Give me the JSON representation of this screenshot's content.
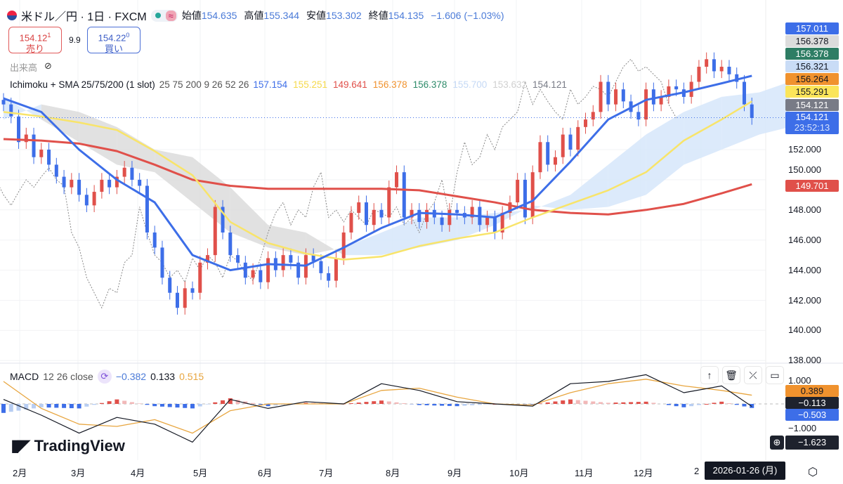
{
  "header": {
    "symbol": "米ドル／円 · 1日 · FXCM",
    "open_label": "始値",
    "open": "154.635",
    "high_label": "高値",
    "high": "155.344",
    "low_label": "安値",
    "low": "153.302",
    "close_label": "終値",
    "close": "154.135",
    "change": "−1.606 (−1.03%)",
    "wave_icon": "≈"
  },
  "trade": {
    "sell_price": "154.12",
    "sell_sup": "1",
    "sell_label": "売り",
    "spread": "9.9",
    "buy_price": "154.22",
    "buy_sup": "0",
    "buy_label": "買い"
  },
  "volume": {
    "label": "出来高",
    "icon": "eye-off-icon"
  },
  "indicator": {
    "name": "Ichimoku + SMA 25/75/200 (1 slot)",
    "params": "25 75 200 9 26 52 26",
    "values": [
      {
        "v": "157.154",
        "color": "#3d6ee8"
      },
      {
        "v": "155.251",
        "color": "#f5d94a"
      },
      {
        "v": "149.641",
        "color": "#e0504a"
      },
      {
        "v": "156.378",
        "color": "#f0922e"
      },
      {
        "v": "156.378",
        "color": "#2e8b6a"
      },
      {
        "v": "155.700",
        "color": "#c5d9f5"
      },
      {
        "v": "153.632",
        "color": "#d0d0d0"
      },
      {
        "v": "154.121",
        "color": "#787b86"
      }
    ]
  },
  "price_labels": [
    {
      "v": "157.011",
      "bg": "#3d6ee8",
      "fg": "#fff"
    },
    {
      "v": "156.378",
      "bg": "#dcdcdc",
      "fg": "#131722"
    },
    {
      "v": "156.378",
      "bg": "#2e7d64",
      "fg": "#fff"
    },
    {
      "v": "156.321",
      "bg": "#c9dcf6",
      "fg": "#131722"
    },
    {
      "v": "156.264",
      "bg": "#f0922e",
      "fg": "#131722"
    },
    {
      "v": "155.291",
      "bg": "#fbe55a",
      "fg": "#131722"
    },
    {
      "v": "154.121",
      "bg": "#787b86",
      "fg": "#fff"
    }
  ],
  "last_price": {
    "v": "154.121",
    "countdown": "23:52:13",
    "bg": "#3d6ee8"
  },
  "sma200_label": {
    "v": "149.701",
    "bg": "#e0504a"
  },
  "price_ticks": [
    "152.000",
    "150.000",
    "148.000",
    "146.000",
    "144.000",
    "142.000",
    "140.000",
    "138.000"
  ],
  "macd": {
    "label": "MACD",
    "params": "12 26 close",
    "hist": "−0.382",
    "macd": "0.133",
    "signal": "0.515",
    "ticks": [
      "1.000",
      "−1.000"
    ],
    "labels": [
      {
        "v": "0.389",
        "bg": "#f0922e",
        "fg": "#131722"
      },
      {
        "v": "−0.113",
        "bg": "#1e222d",
        "fg": "#fff"
      },
      {
        "v": "−0.503",
        "bg": "#3d6ee8",
        "fg": "#fff"
      }
    ],
    "crosshair": "−1.623"
  },
  "pane_buttons": [
    "↑",
    "🗑",
    "⤫",
    "▭"
  ],
  "months": [
    "2月",
    "3月",
    "4月",
    "5月",
    "6月",
    "7月",
    "8月",
    "9月",
    "10月",
    "11月",
    "12月",
    "2"
  ],
  "tooltip": "2026-01-26 (月)",
  "logo": "TradingView",
  "chart_data": {
    "type": "candlestick",
    "up_color": "#e0504a",
    "down_color": "#3d6ee8",
    "ylim": [
      138,
      157.5
    ],
    "close": [
      155.0,
      154.2,
      152.5,
      153.0,
      151.5,
      152.0,
      151.0,
      150.2,
      149.5,
      150.0,
      149.0,
      148.3,
      149.2,
      150.0,
      149.5,
      150.2,
      150.8,
      150.0,
      149.6,
      146.5,
      145.5,
      143.5,
      142.5,
      141.5,
      142.8,
      142.5,
      144.5,
      145.0,
      148.2,
      146.5,
      145.0,
      144.5,
      143.5,
      144.0,
      143.2,
      144.8,
      144.0,
      145.0,
      144.5,
      143.5,
      145.0,
      144.6,
      143.8,
      143.3,
      144.8,
      146.5,
      147.8,
      148.5,
      147.0,
      148.0,
      147.5,
      149.5,
      150.5,
      147.5,
      148.0,
      147.2,
      148.0,
      147.5,
      147.0,
      148.0,
      147.8,
      147.5,
      148.2,
      147.0,
      147.5,
      146.5,
      147.8,
      148.5,
      150.0,
      147.5,
      150.5,
      152.5,
      151.0,
      151.5,
      153.0,
      152.0,
      153.5,
      154.0,
      154.5,
      156.5,
      155.0,
      156.0,
      155.2,
      154.5,
      154.0,
      156.0,
      155.0,
      155.5,
      156.2,
      156.0,
      155.5,
      156.5,
      157.5,
      158.0,
      157.2,
      157.5,
      157.0,
      156.5,
      155.0,
      154.1
    ],
    "sample_step": 5,
    "sma25": [
      155.4,
      154.5,
      152.0,
      150.0,
      148.5,
      145.0,
      144.0,
      144.4,
      144.3,
      145.5,
      146.8,
      147.8,
      147.7,
      147.5,
      148.6,
      151.2,
      154.0,
      155.3,
      155.8,
      156.4,
      156.9
    ],
    "sma75": [
      154.5,
      154.2,
      153.8,
      153.3,
      151.9,
      150.3,
      147.2,
      145.8,
      145.1,
      144.7,
      144.9,
      145.6,
      146.1,
      146.5,
      147.5,
      148.4,
      149.3,
      150.5,
      152.6,
      154.0,
      155.2
    ],
    "sma200": [
      152.7,
      152.6,
      152.4,
      151.9,
      151.0,
      150.0,
      149.6,
      149.4,
      149.4,
      149.4,
      149.4,
      149.3,
      148.9,
      148.5,
      148.0,
      147.8,
      147.7,
      148.0,
      148.4,
      149.1,
      149.7
    ],
    "span_a": [
      155.5,
      154.0,
      152.5,
      151.0,
      150.5,
      148.5,
      146.5,
      145.5,
      145.0,
      145.5,
      146.5,
      147.5,
      147.5,
      147.8,
      148.0,
      149.0,
      151.0,
      153.0,
      154.5,
      155.5,
      155.8,
      156.5
    ],
    "span_b": [
      154.0,
      155.0,
      154.5,
      153.5,
      152.0,
      151.5,
      149.5,
      147.0,
      146.5,
      145.0,
      145.0,
      145.5,
      146.0,
      147.0,
      148.3,
      148.0,
      148.2,
      149.0,
      151.0,
      152.0,
      153.0,
      153.5
    ],
    "macd_line": [
      0.2,
      -0.5,
      -1.3,
      -0.6,
      -0.9,
      -1.7,
      0.2,
      -0.2,
      0.1,
      0.0,
      0.9,
      0.6,
      0.1,
      0.0,
      -0.1,
      0.9,
      1.0,
      1.3,
      0.5,
      0.8,
      -0.113
    ],
    "signal_line": [
      1.0,
      -0.2,
      -0.9,
      -1.0,
      -0.7,
      -1.3,
      -0.3,
      0.0,
      0.0,
      0.0,
      0.6,
      0.7,
      0.3,
      0.0,
      -0.05,
      0.5,
      0.9,
      1.1,
      0.8,
      0.6,
      0.389
    ]
  }
}
